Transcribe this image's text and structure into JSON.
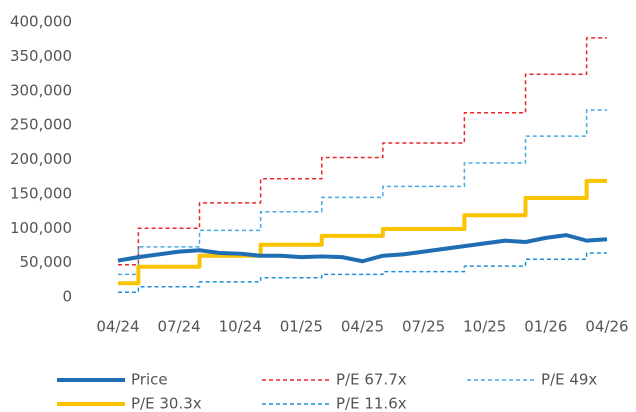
{
  "chart_data": {
    "type": "line",
    "x": [
      "04/24",
      "05/24",
      "06/24",
      "07/24",
      "08/24",
      "09/24",
      "10/24",
      "11/24",
      "12/24",
      "01/25",
      "02/25",
      "03/25",
      "04/25",
      "05/25",
      "06/25",
      "07/25",
      "08/25",
      "09/25",
      "10/25",
      "11/25",
      "12/25",
      "01/26",
      "02/26",
      "03/26",
      "04/26"
    ],
    "series": [
      {
        "name": "Price",
        "color": "#1f6db3",
        "width": 4,
        "dash": "none",
        "step": "none",
        "values": [
          53000,
          58000,
          62000,
          66000,
          68000,
          64000,
          63000,
          60000,
          60000,
          58000,
          59000,
          58000,
          52000,
          60000,
          62000,
          66000,
          70000,
          74000,
          78000,
          82000,
          80000,
          86000,
          90000,
          82000,
          84000
        ]
      },
      {
        "name": "P/E 67.7x",
        "color": "#e8262a",
        "width": 1.5,
        "dash": "4 3",
        "step": "after",
        "values": [
          47000,
          100000,
          100000,
          100000,
          137000,
          137000,
          137000,
          172000,
          172000,
          172000,
          203000,
          203000,
          203000,
          224000,
          224000,
          224000,
          224000,
          268000,
          268000,
          268000,
          324000,
          324000,
          324000,
          377000,
          377000
        ]
      },
      {
        "name": "P/E 49x",
        "color": "#45aae2",
        "width": 1.5,
        "dash": "4 3",
        "step": "after",
        "values": [
          33000,
          73000,
          73000,
          73000,
          97000,
          97000,
          97000,
          124000,
          124000,
          124000,
          145000,
          145000,
          145000,
          161000,
          161000,
          161000,
          161000,
          195000,
          195000,
          195000,
          234000,
          234000,
          234000,
          272000,
          272000
        ]
      },
      {
        "name": "P/E 30.3x",
        "color": "#f9c300",
        "width": 4,
        "dash": "none",
        "step": "after",
        "values": [
          20000,
          44000,
          44000,
          44000,
          60000,
          60000,
          60000,
          76000,
          76000,
          76000,
          89000,
          89000,
          89000,
          99000,
          99000,
          99000,
          99000,
          119000,
          119000,
          119000,
          144000,
          144000,
          144000,
          169000,
          169000
        ]
      },
      {
        "name": "P/E 11.6x",
        "color": "#1e8fd6",
        "width": 1.5,
        "dash": "4 3",
        "step": "after",
        "values": [
          7000,
          15000,
          15000,
          15000,
          22000,
          22000,
          22000,
          28000,
          28000,
          28000,
          33000,
          33000,
          33000,
          37000,
          37000,
          37000,
          37000,
          45000,
          45000,
          45000,
          55000,
          55000,
          55000,
          64000,
          64000
        ]
      }
    ],
    "ylim": [
      0,
      400000
    ],
    "yticks": [
      0,
      {
        "value": 50000,
        "label": "50,000"
      },
      {
        "value": 100000,
        "label": "100,000"
      },
      {
        "value": 150000,
        "label": "150,000"
      },
      {
        "value": 200000,
        "label": "200,000"
      },
      {
        "value": 250000,
        "label": "250,000"
      },
      {
        "value": 300000,
        "label": "300,000"
      },
      {
        "value": 350000,
        "label": "350,000"
      },
      {
        "value": 400000,
        "label": "400,000"
      }
    ],
    "grid": false,
    "legend": "bottom"
  }
}
